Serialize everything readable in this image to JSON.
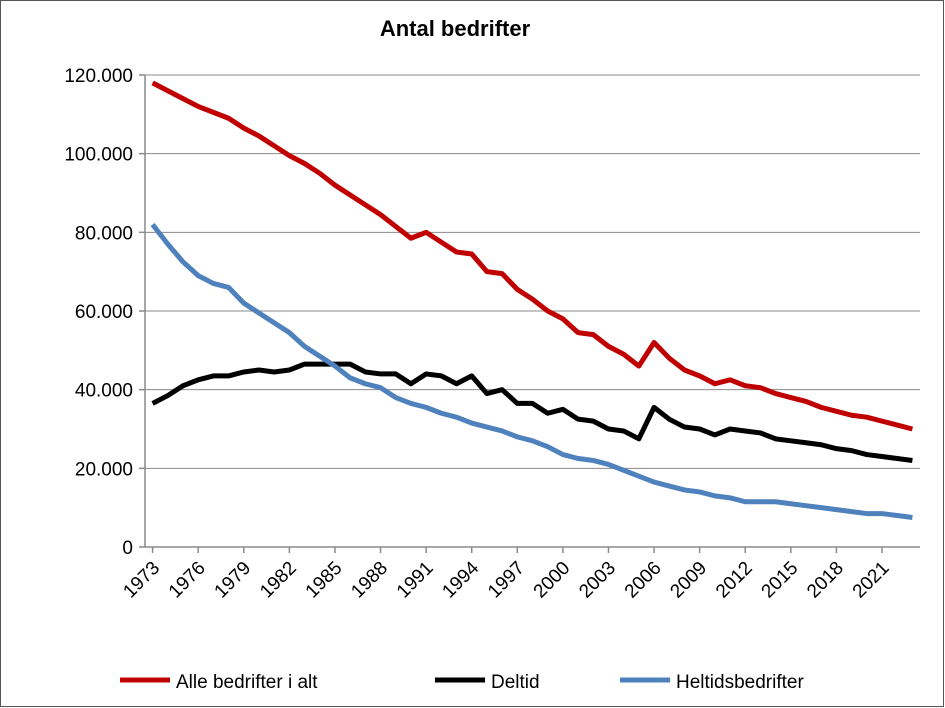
{
  "chart_data": {
    "type": "line",
    "title": "Antal bedrifter",
    "x": [
      1973,
      1974,
      1975,
      1976,
      1977,
      1978,
      1979,
      1980,
      1981,
      1982,
      1983,
      1984,
      1985,
      1986,
      1987,
      1988,
      1989,
      1990,
      1991,
      1992,
      1993,
      1994,
      1995,
      1996,
      1997,
      1998,
      1999,
      2000,
      2001,
      2002,
      2003,
      2004,
      2005,
      2006,
      2007,
      2008,
      2009,
      2010,
      2011,
      2012,
      2013,
      2014,
      2015,
      2016,
      2017,
      2018,
      2019,
      2020,
      2021,
      2022,
      2023
    ],
    "xlim": [
      1972.5,
      2023.5
    ],
    "xticks": [
      1973,
      1976,
      1979,
      1982,
      1985,
      1988,
      1991,
      1994,
      1997,
      2000,
      2003,
      2006,
      2009,
      2012,
      2015,
      2018,
      2021
    ],
    "ylim": [
      0,
      120000
    ],
    "yticks": [
      0,
      {
        "value": 20000,
        "label": "20.000"
      },
      {
        "value": 40000,
        "label": "40.000"
      },
      {
        "value": 60000,
        "label": "60.000"
      },
      {
        "value": 80000,
        "label": "80.000"
      },
      {
        "value": 100000,
        "label": "100.000"
      },
      {
        "value": 120000,
        "label": "120.000"
      }
    ],
    "grid": true,
    "legend": "bottom",
    "series": [
      {
        "name": "Alle bedrifter i alt",
        "color": "#c00000",
        "values": [
          118000,
          116000,
          114000,
          112000,
          110500,
          109000,
          106500,
          104500,
          102000,
          99500,
          97500,
          95000,
          92000,
          89500,
          87000,
          84500,
          81500,
          78500,
          80000,
          77500,
          75000,
          74500,
          70000,
          69500,
          65500,
          63000,
          60000,
          58000,
          54500,
          54000,
          51000,
          49000,
          46000,
          52000,
          48000,
          45000,
          43500,
          41500,
          42500,
          41000,
          40500,
          39000,
          38000,
          37000,
          35500,
          34500,
          33500,
          33000,
          32000,
          31000,
          30000
        ]
      },
      {
        "name": "Deltid",
        "color": "#000000",
        "values": [
          36500,
          38500,
          41000,
          42500,
          43500,
          43500,
          44500,
          45000,
          44500,
          45000,
          46500,
          46500,
          46500,
          46500,
          44500,
          44000,
          44000,
          41500,
          44000,
          43500,
          41500,
          43500,
          39000,
          40000,
          36500,
          36500,
          34000,
          35000,
          32500,
          32000,
          30000,
          29500,
          27500,
          35500,
          32500,
          30500,
          30000,
          28500,
          30000,
          29500,
          29000,
          27500,
          27000,
          26500,
          26000,
          25000,
          24500,
          23500,
          23000,
          22500,
          22000
        ]
      },
      {
        "name": "Heltidsbedrifter",
        "color": "#4f81bd",
        "values": [
          82000,
          77000,
          72500,
          69000,
          67000,
          66000,
          62000,
          59500,
          57000,
          54500,
          51000,
          48500,
          46000,
          43000,
          41500,
          40500,
          38000,
          36500,
          35500,
          34000,
          33000,
          31500,
          30500,
          29500,
          28000,
          27000,
          25500,
          23500,
          22500,
          22000,
          21000,
          19500,
          18000,
          16500,
          15500,
          14500,
          14000,
          13000,
          12500,
          11500,
          11500,
          11500,
          11000,
          10500,
          10000,
          9500,
          9000,
          8500,
          8500,
          8000,
          7500
        ]
      }
    ]
  }
}
